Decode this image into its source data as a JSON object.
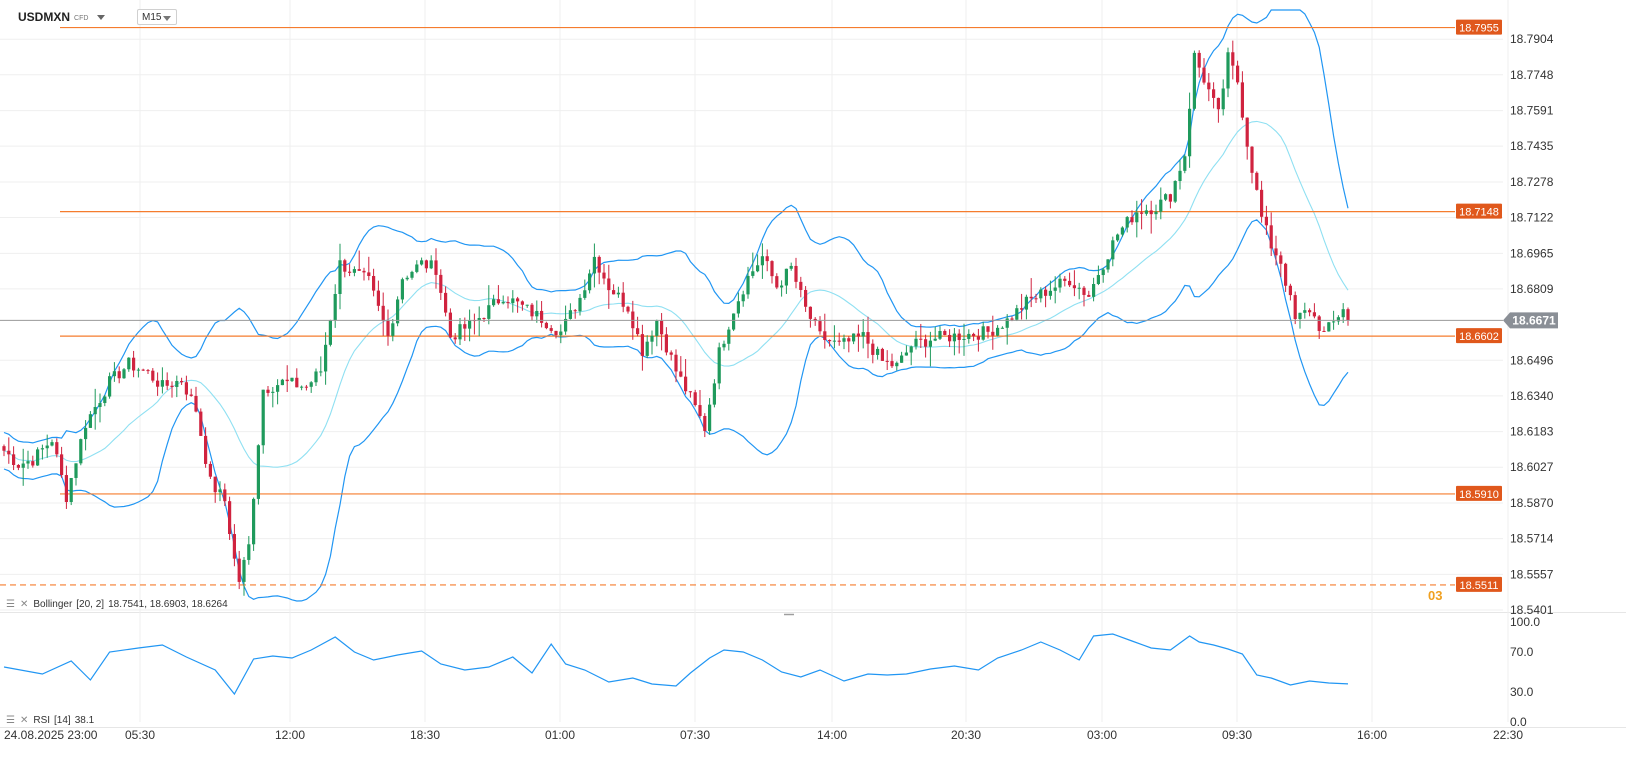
{
  "header": {
    "symbol": "USDMXN",
    "instrument_type": "CFD",
    "timeframe": "M15"
  },
  "indicators": {
    "bollinger": {
      "name": "Bollinger",
      "params": "[20, 2]",
      "values": "18.7541,   18.6903,   18.6264"
    },
    "rsi": {
      "name": "RSI",
      "params": "[14]",
      "value": "38.1"
    }
  },
  "badge_fragment": "03",
  "colors": {
    "up_candle": "#1f9a5c",
    "down_candle": "#d0233f",
    "bollinger": "#2196f3",
    "bollinger_mid": "#8fe0f2",
    "level_line": "#f57c2e",
    "level_tag": "#e0581c",
    "price_line": "#999999",
    "price_tag": "#8a8f96",
    "rsi_line": "#2196f3",
    "grid": "#efefef"
  },
  "chart_data": [
    {
      "type": "candlestick",
      "panel": "price",
      "symbol": "USDMXN",
      "timeframe": "M15",
      "x_tick_labels": [
        "24.08.2025 23:00",
        "05:30",
        "12:00",
        "18:30",
        "01:00",
        "07:30",
        "14:00",
        "20:30",
        "03:00",
        "09:30",
        "16:00",
        "22:30"
      ],
      "y_tick_labels": [
        "18.7904",
        "18.7748",
        "18.7591",
        "18.7435",
        "18.7278",
        "18.7122",
        "18.6965",
        "18.6809",
        "18.6496",
        "18.6340",
        "18.6183",
        "18.6027",
        "18.5870",
        "18.5714",
        "18.5557",
        "18.5401"
      ],
      "ylim": [
        18.5401,
        18.7997
      ],
      "current_price": 18.6671,
      "current_price_label": "18.6671",
      "horizontal_levels": [
        {
          "value": 18.7955,
          "label": "18.7955",
          "style": "solid"
        },
        {
          "value": 18.7148,
          "label": "18.7148",
          "style": "solid"
        },
        {
          "value": 18.6602,
          "label": "18.6602",
          "style": "solid"
        },
        {
          "value": 18.591,
          "label": "18.5910",
          "style": "solid"
        },
        {
          "value": 18.5511,
          "label": "18.5511",
          "style": "dashed"
        }
      ],
      "close_path": [
        [
          0,
          18.61
        ],
        [
          3,
          18.604
        ],
        [
          6,
          18.606
        ],
        [
          10,
          18.615
        ],
        [
          13,
          18.59
        ],
        [
          17,
          18.622
        ],
        [
          22,
          18.64
        ],
        [
          26,
          18.648
        ],
        [
          30,
          18.644
        ],
        [
          33,
          18.638
        ],
        [
          37,
          18.641
        ],
        [
          40,
          18.628
        ],
        [
          43,
          18.596
        ],
        [
          46,
          18.588
        ],
        [
          48,
          18.562
        ],
        [
          49,
          18.553
        ],
        [
          51,
          18.568
        ],
        [
          54,
          18.637
        ],
        [
          58,
          18.64
        ],
        [
          63,
          18.638
        ],
        [
          66,
          18.645
        ],
        [
          70,
          18.692
        ],
        [
          73,
          18.688
        ],
        [
          76,
          18.684
        ],
        [
          80,
          18.66
        ],
        [
          83,
          18.686
        ],
        [
          87,
          18.692
        ],
        [
          90,
          18.69
        ],
        [
          93,
          18.66
        ],
        [
          97,
          18.665
        ],
        [
          100,
          18.67
        ],
        [
          104,
          18.678
        ],
        [
          108,
          18.673
        ],
        [
          112,
          18.668
        ],
        [
          116,
          18.662
        ],
        [
          120,
          18.677
        ],
        [
          123,
          18.695
        ],
        [
          126,
          18.682
        ],
        [
          130,
          18.673
        ],
        [
          133,
          18.654
        ],
        [
          136,
          18.667
        ],
        [
          140,
          18.645
        ],
        [
          143,
          18.633
        ],
        [
          146,
          18.62
        ],
        [
          149,
          18.653
        ],
        [
          152,
          18.672
        ],
        [
          155,
          18.686
        ],
        [
          158,
          18.695
        ],
        [
          161,
          18.682
        ],
        [
          164,
          18.69
        ],
        [
          167,
          18.672
        ],
        [
          170,
          18.66
        ],
        [
          174,
          18.656
        ],
        [
          179,
          18.66
        ],
        [
          183,
          18.649
        ],
        [
          186,
          18.647
        ],
        [
          189,
          18.656
        ],
        [
          193,
          18.659
        ],
        [
          197,
          18.66
        ],
        [
          201,
          18.661
        ],
        [
          205,
          18.662
        ],
        [
          209,
          18.667
        ],
        [
          213,
          18.675
        ],
        [
          218,
          18.681
        ],
        [
          222,
          18.685
        ],
        [
          226,
          18.678
        ],
        [
          228,
          18.688
        ],
        [
          232,
          18.705
        ],
        [
          236,
          18.715
        ],
        [
          240,
          18.717
        ],
        [
          243,
          18.722
        ],
        [
          246,
          18.74
        ],
        [
          248,
          18.783
        ],
        [
          250,
          18.773
        ],
        [
          253,
          18.757
        ],
        [
          255,
          18.782
        ],
        [
          257,
          18.772
        ],
        [
          259,
          18.745
        ],
        [
          262,
          18.712
        ],
        [
          264,
          18.7
        ],
        [
          266,
          18.693
        ],
        [
          269,
          18.667
        ],
        [
          272,
          18.672
        ],
        [
          275,
          18.661
        ],
        [
          277,
          18.666
        ],
        [
          279,
          18.673
        ],
        [
          280,
          18.665
        ]
      ]
    },
    {
      "type": "line",
      "panel": "rsi",
      "name": "RSI [14]",
      "y_tick_labels": [
        "100.0",
        "70.0",
        "30.0",
        "0.0"
      ],
      "ylim": [
        0,
        100
      ],
      "x": [
        0,
        8,
        14,
        18,
        22,
        28,
        33,
        38,
        44,
        48,
        52,
        56,
        60,
        64,
        69,
        73,
        77,
        82,
        87,
        91,
        96,
        101,
        106,
        110,
        114,
        117,
        121,
        126,
        131,
        135,
        140,
        143,
        147,
        150,
        154,
        158,
        162,
        166,
        170,
        175,
        180,
        184,
        188,
        193,
        198,
        203,
        207,
        212,
        216,
        220,
        224,
        227,
        231,
        235,
        239,
        243,
        247,
        249,
        252,
        255,
        258,
        261,
        264,
        268,
        272,
        276,
        280
      ],
      "values": [
        55,
        48,
        61,
        42,
        70,
        74,
        77,
        65,
        52,
        28,
        63,
        66,
        64,
        72,
        85,
        70,
        62,
        67,
        71,
        58,
        52,
        55,
        65,
        49,
        78,
        58,
        52,
        40,
        44,
        38,
        36,
        49,
        64,
        72,
        70,
        62,
        50,
        45,
        52,
        41,
        48,
        47,
        48,
        53,
        56,
        52,
        64,
        72,
        80,
        72,
        62,
        86,
        88,
        81,
        74,
        72,
        86,
        80,
        77,
        73,
        68,
        47,
        44,
        37,
        41,
        39,
        38.1
      ]
    }
  ]
}
